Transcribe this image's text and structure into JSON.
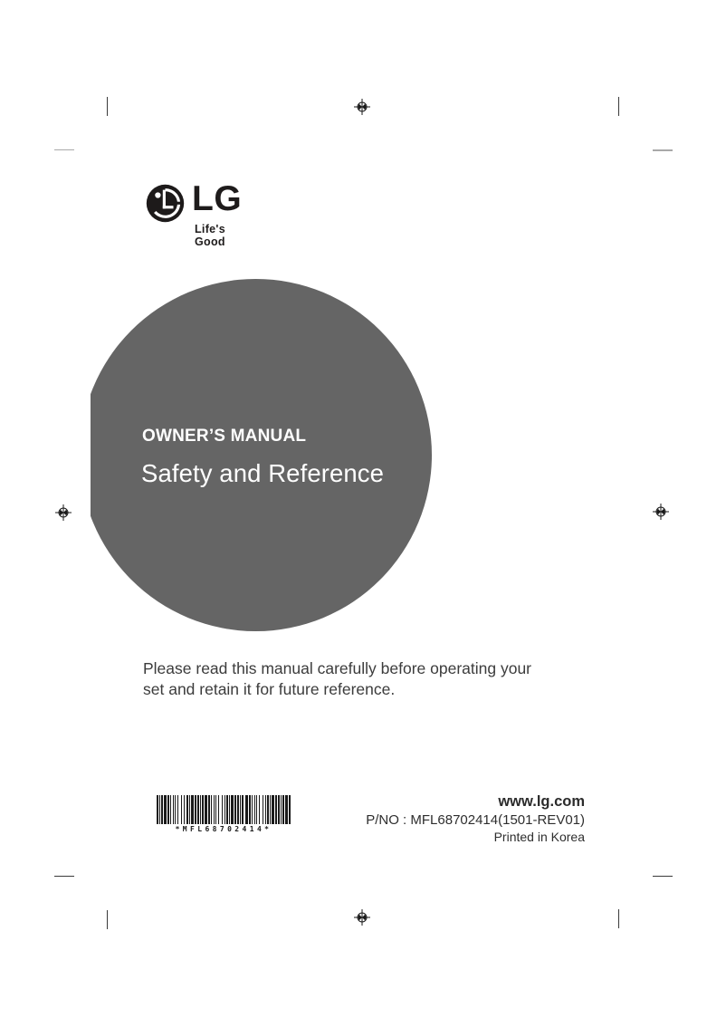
{
  "brand": {
    "name": "LG",
    "tagline": "Life's Good",
    "color": "#1e1b1b"
  },
  "cover": {
    "eyebrow": "OWNER’S MANUAL",
    "title": "Safety and Reference",
    "circle_color": "#656565",
    "text_color": "#ffffff"
  },
  "notice": {
    "line1": "Please read this manual carefully before operating your",
    "line2": "set and retain it for future reference."
  },
  "barcode": {
    "label": "*MFL68702414*",
    "pattern": "211121312112111213121121113121211121312112111213121121113121211121312112111213121121113121211121312"
  },
  "footer": {
    "website": "www.lg.com",
    "part_number": "P/NO : MFL68702414(1501-REV01)",
    "printed_in": "Printed in Korea"
  }
}
